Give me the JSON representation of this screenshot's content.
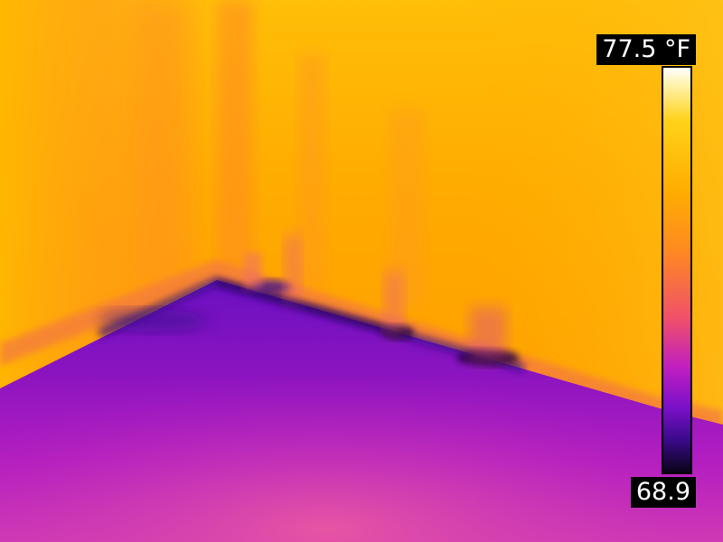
{
  "thermal_image": {
    "palette_colors": {
      "hot": "#fffbe6",
      "warm": "#ffb400",
      "mid": "#ff8a1e",
      "cool": "#c01ec0",
      "cold": "#3a0a8a",
      "coldest": "#0a0418"
    },
    "scale": {
      "max_label": "77.5 °F",
      "min_label": "68.9",
      "max_value": 77.5,
      "min_value": 68.9,
      "unit": "°F"
    }
  }
}
